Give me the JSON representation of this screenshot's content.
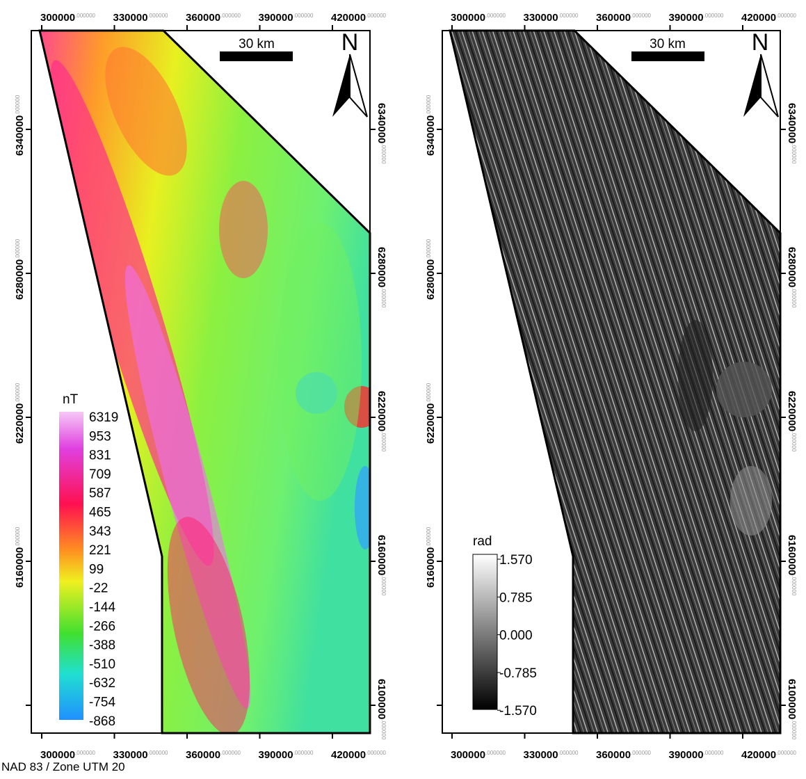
{
  "axes": {
    "x_ticks": [
      {
        "label": "300000",
        "decimals": ".000000"
      },
      {
        "label": "330000",
        "decimals": ".000000"
      },
      {
        "label": "360000",
        "decimals": ".000000"
      },
      {
        "label": "390000",
        "decimals": ".000000"
      },
      {
        "label": "420000",
        "decimals": ".000000"
      }
    ],
    "y_ticks": [
      {
        "label": "6340000",
        "decimals": ".000000"
      },
      {
        "label": "6280000",
        "decimals": ".000000"
      },
      {
        "label": "6220000",
        "decimals": ".000000"
      },
      {
        "label": "6160000",
        "decimals": ".000000"
      },
      {
        "label": "6100000",
        "decimals": ".000000"
      }
    ]
  },
  "maps": [
    {
      "legend": {
        "title": "nT",
        "labels": [
          "6319",
          "953",
          "831",
          "709",
          "587",
          "465",
          "343",
          "221",
          "99",
          "-22",
          "-144",
          "-266",
          "-388",
          "-510",
          "-632",
          "-754",
          "-868"
        ]
      },
      "scale_bar": "30 km",
      "north": "N"
    },
    {
      "legend": {
        "title": "rad",
        "labels": [
          "1.570",
          "0.785",
          "0.000",
          "-0.785",
          "-1.570"
        ]
      },
      "scale_bar": "30 km",
      "north": "N"
    }
  ],
  "crs": "NAD 83 / Zone UTM 20"
}
